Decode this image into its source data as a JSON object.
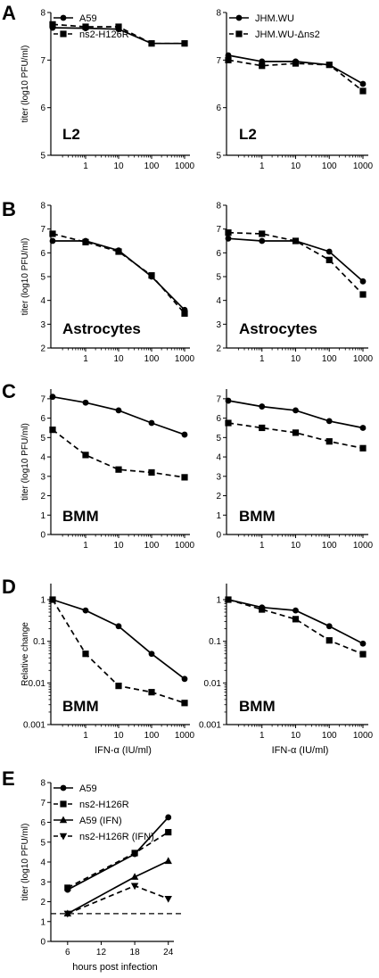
{
  "panel_letters": [
    "A",
    "B",
    "C",
    "D",
    "E"
  ],
  "chart_data": [
    {
      "type": "line",
      "panel": "A",
      "title": "",
      "cell_label": "L2",
      "xlabel": "",
      "ylabel": "titer (log10 PFU/ml)",
      "xscale": "log",
      "yscale": "linear",
      "x_tick_labels": [
        "1",
        "10",
        "100",
        "1000"
      ],
      "y_ticks": [
        5,
        6,
        7,
        8
      ],
      "ylim": [
        5,
        8
      ],
      "legend_position": "top-left",
      "series": [
        {
          "name": "A59",
          "style": "solid",
          "marker": "circle",
          "x": [
            0.1,
            1,
            10,
            100,
            1000
          ],
          "y": [
            7.68,
            7.67,
            7.65,
            7.35,
            7.35
          ]
        },
        {
          "name": "ns2-H126R",
          "style": "dashed",
          "marker": "square",
          "x": [
            0.1,
            1,
            10,
            100,
            1000
          ],
          "y": [
            7.75,
            7.7,
            7.7,
            7.35,
            7.35
          ]
        }
      ]
    },
    {
      "type": "line",
      "panel": "A",
      "title": "",
      "cell_label": "L2",
      "xlabel": "",
      "ylabel": "",
      "xscale": "log",
      "yscale": "linear",
      "x_tick_labels": [
        "1",
        "10",
        "100",
        "1000"
      ],
      "y_ticks": [
        5,
        6,
        7,
        8
      ],
      "ylim": [
        5,
        8
      ],
      "legend_position": "top-left",
      "series": [
        {
          "name": "JHM.WU",
          "style": "solid",
          "marker": "circle",
          "x": [
            0.1,
            1,
            10,
            100,
            1000
          ],
          "y": [
            7.1,
            6.97,
            6.97,
            6.9,
            6.5
          ]
        },
        {
          "name": "JHM.WU-Δns2",
          "style": "dashed",
          "marker": "square",
          "x": [
            0.1,
            1,
            10,
            100,
            1000
          ],
          "y": [
            7.0,
            6.88,
            6.93,
            6.9,
            6.35
          ]
        }
      ]
    },
    {
      "type": "line",
      "panel": "B",
      "title": "",
      "cell_label": "Astrocytes",
      "xlabel": "",
      "ylabel": "titer (log10 PFU/ml)",
      "xscale": "log",
      "yscale": "linear",
      "x_tick_labels": [
        "1",
        "10",
        "100",
        "1000"
      ],
      "y_ticks": [
        2,
        3,
        4,
        5,
        6,
        7,
        8
      ],
      "ylim": [
        2,
        8
      ],
      "series": [
        {
          "name": "A59",
          "style": "solid",
          "marker": "circle",
          "x": [
            0.1,
            1,
            10,
            100,
            1000
          ],
          "y": [
            6.5,
            6.5,
            6.1,
            5.0,
            3.6
          ]
        },
        {
          "name": "ns2-H126R",
          "style": "dashed",
          "marker": "square",
          "x": [
            0.1,
            1,
            10,
            100,
            1000
          ],
          "y": [
            6.8,
            6.45,
            6.05,
            5.05,
            3.45
          ]
        }
      ]
    },
    {
      "type": "line",
      "panel": "B",
      "title": "",
      "cell_label": "Astrocytes",
      "xlabel": "",
      "ylabel": "",
      "xscale": "log",
      "yscale": "linear",
      "x_tick_labels": [
        "1",
        "10",
        "100",
        "1000"
      ],
      "y_ticks": [
        2,
        3,
        4,
        5,
        6,
        7,
        8
      ],
      "ylim": [
        2,
        8
      ],
      "series": [
        {
          "name": "JHM.WU",
          "style": "solid",
          "marker": "circle",
          "x": [
            0.1,
            1,
            10,
            100,
            1000
          ],
          "y": [
            6.6,
            6.5,
            6.5,
            6.05,
            4.8
          ]
        },
        {
          "name": "JHM.WU-Δns2",
          "style": "dashed",
          "marker": "square",
          "x": [
            0.1,
            1,
            10,
            100,
            1000
          ],
          "y": [
            6.85,
            6.8,
            6.5,
            5.7,
            4.25
          ]
        }
      ]
    },
    {
      "type": "line",
      "panel": "C",
      "title": "",
      "cell_label": "BMM",
      "xlabel": "",
      "ylabel": "titer (log10 PFU/ml)",
      "xscale": "log",
      "yscale": "linear",
      "x_tick_labels": [
        "1",
        "10",
        "100",
        "1000"
      ],
      "y_ticks": [
        0,
        1,
        2,
        3,
        4,
        5,
        6,
        7
      ],
      "ylim": [
        0,
        7.5
      ],
      "series": [
        {
          "name": "A59",
          "style": "solid",
          "marker": "circle",
          "x": [
            0.1,
            1,
            10,
            100,
            1000
          ],
          "y": [
            7.1,
            6.8,
            6.4,
            5.75,
            5.15
          ]
        },
        {
          "name": "ns2-H126R",
          "style": "dashed",
          "marker": "square",
          "x": [
            0.1,
            1,
            10,
            100,
            1000
          ],
          "y": [
            5.4,
            4.1,
            3.35,
            3.2,
            2.95
          ]
        }
      ]
    },
    {
      "type": "line",
      "panel": "C",
      "title": "",
      "cell_label": "BMM",
      "xlabel": "",
      "ylabel": "",
      "xscale": "log",
      "yscale": "linear",
      "x_tick_labels": [
        "1",
        "10",
        "100",
        "1000"
      ],
      "y_ticks": [
        0,
        1,
        2,
        3,
        4,
        5,
        6,
        7
      ],
      "ylim": [
        0,
        7.5
      ],
      "series": [
        {
          "name": "JHM.WU",
          "style": "solid",
          "marker": "circle",
          "x": [
            0.1,
            1,
            10,
            100,
            1000
          ],
          "y": [
            6.9,
            6.6,
            6.4,
            5.85,
            5.5
          ]
        },
        {
          "name": "JHM.WU-Δns2",
          "style": "dashed",
          "marker": "square",
          "x": [
            0.1,
            1,
            10,
            100,
            1000
          ],
          "y": [
            5.75,
            5.5,
            5.25,
            4.8,
            4.45
          ]
        }
      ]
    },
    {
      "type": "line",
      "panel": "D",
      "title": "",
      "cell_label": "BMM",
      "xlabel": "IFN-α (IU/ml)",
      "ylabel": "Relative change",
      "xscale": "log",
      "yscale": "log",
      "x_tick_labels": [
        "1",
        "10",
        "100",
        "1000"
      ],
      "y_tick_labels": [
        "0.001",
        "0.01",
        "0.1",
        "1"
      ],
      "ylim": [
        0.001,
        1.5
      ],
      "series": [
        {
          "name": "A59",
          "style": "solid",
          "marker": "circle",
          "x": [
            0.1,
            1,
            10,
            100,
            1000
          ],
          "y": [
            1.0,
            0.55,
            0.23,
            0.05,
            0.0125
          ]
        },
        {
          "name": "ns2-H126R",
          "style": "dashed",
          "marker": "square",
          "x": [
            0.1,
            1,
            10,
            100,
            1000
          ],
          "y": [
            1.0,
            0.05,
            0.0085,
            0.006,
            0.0033
          ]
        }
      ]
    },
    {
      "type": "line",
      "panel": "D",
      "title": "",
      "cell_label": "BMM",
      "xlabel": "IFN-α (IU/ml)",
      "ylabel": "",
      "xscale": "log",
      "yscale": "log",
      "x_tick_labels": [
        "1",
        "10",
        "100",
        "1000"
      ],
      "y_tick_labels": [
        "0.001",
        "0.01",
        "0.1",
        "1"
      ],
      "ylim": [
        0.001,
        1.5
      ],
      "series": [
        {
          "name": "JHM.WU",
          "style": "solid",
          "marker": "circle",
          "x": [
            0.1,
            1,
            10,
            100,
            1000
          ],
          "y": [
            1.0,
            0.65,
            0.55,
            0.23,
            0.088
          ]
        },
        {
          "name": "JHM.WU-Δns2",
          "style": "dashed",
          "marker": "square",
          "x": [
            0.1,
            1,
            10,
            100,
            1000
          ],
          "y": [
            1.0,
            0.58,
            0.34,
            0.105,
            0.049
          ]
        }
      ]
    },
    {
      "type": "line",
      "panel": "E",
      "title": "",
      "xlabel": "hours post infection",
      "ylabel": "titer (log10 PFU/ml)",
      "xscale": "linear",
      "yscale": "linear",
      "x_ticks": [
        6,
        12,
        18,
        24
      ],
      "y_ticks": [
        0,
        1,
        2,
        3,
        4,
        5,
        6,
        7,
        8
      ],
      "xlim": [
        3,
        25
      ],
      "ylim": [
        0,
        8
      ],
      "legend_position": "top-left",
      "dashed_reference_line_y": 1.4,
      "series": [
        {
          "name": "A59",
          "style": "solid",
          "marker": "circle",
          "x": [
            6,
            18,
            24
          ],
          "y": [
            2.6,
            4.4,
            6.25
          ]
        },
        {
          "name": "ns2-H126R",
          "style": "dashed",
          "marker": "square",
          "x": [
            6,
            18,
            24
          ],
          "y": [
            2.7,
            4.45,
            5.5
          ]
        },
        {
          "name": "A59 (IFN)",
          "style": "solid",
          "marker": "triangle-up",
          "x": [
            6,
            18,
            24
          ],
          "y": [
            1.4,
            3.25,
            4.05
          ]
        },
        {
          "name": "ns2-H126R (IFN)",
          "style": "dashed",
          "marker": "triangle-down",
          "x": [
            6,
            18,
            24
          ],
          "y": [
            1.4,
            2.8,
            2.15
          ]
        }
      ]
    }
  ]
}
